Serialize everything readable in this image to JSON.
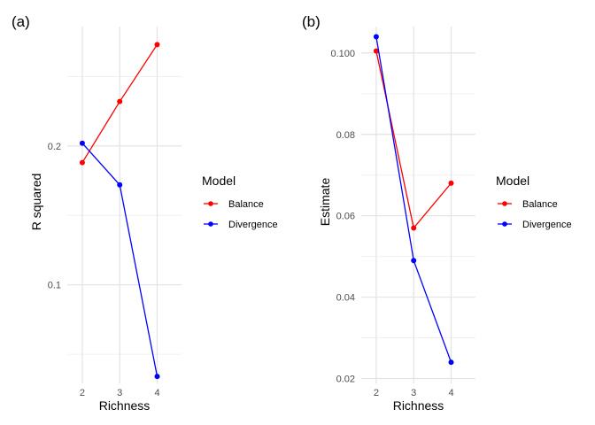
{
  "chart_data": [
    {
      "type": "line",
      "panel_tag": "(a)",
      "xlabel": "Richness",
      "ylabel": "R squared",
      "x": [
        2,
        3,
        4
      ],
      "x_ticks": [
        "2",
        "3",
        "4"
      ],
      "xlim": [
        1.6,
        4.65
      ],
      "ylim": [
        0.029,
        0.286
      ],
      "y_ticks": [
        0.1,
        0.2
      ],
      "y_tick_labels": [
        "0.1",
        "0.2"
      ],
      "y_minor_ticks": [
        0.05,
        0.15,
        0.25
      ],
      "grid": true,
      "legend": {
        "title": "Model",
        "placement": "right",
        "entries": [
          "Balance",
          "Divergence"
        ]
      },
      "series": [
        {
          "name": "Balance",
          "color": "#ff0000",
          "values": [
            0.188,
            0.232,
            0.273
          ]
        },
        {
          "name": "Divergence",
          "color": "#0000ff",
          "values": [
            0.202,
            0.172,
            0.034
          ]
        }
      ]
    },
    {
      "type": "line",
      "panel_tag": "(b)",
      "xlabel": "Richness",
      "ylabel": "Estimate",
      "x": [
        2,
        3,
        4
      ],
      "x_ticks": [
        "2",
        "3",
        "4"
      ],
      "xlim": [
        1.6,
        4.65
      ],
      "ylim": [
        0.0188,
        0.1065
      ],
      "y_ticks": [
        0.02,
        0.04,
        0.06,
        0.08,
        0.1
      ],
      "y_tick_labels": [
        "0.02",
        "0.04",
        "0.06",
        "0.08",
        "0.100"
      ],
      "y_minor_ticks": [
        0.03,
        0.05,
        0.07,
        0.09
      ],
      "grid": true,
      "legend": {
        "title": "Model",
        "placement": "right",
        "entries": [
          "Balance",
          "Divergence"
        ]
      },
      "series": [
        {
          "name": "Balance",
          "color": "#ff0000",
          "values": [
            0.1005,
            0.057,
            0.068
          ]
        },
        {
          "name": "Divergence",
          "color": "#0000ff",
          "values": [
            0.104,
            0.049,
            0.024
          ]
        }
      ]
    }
  ]
}
